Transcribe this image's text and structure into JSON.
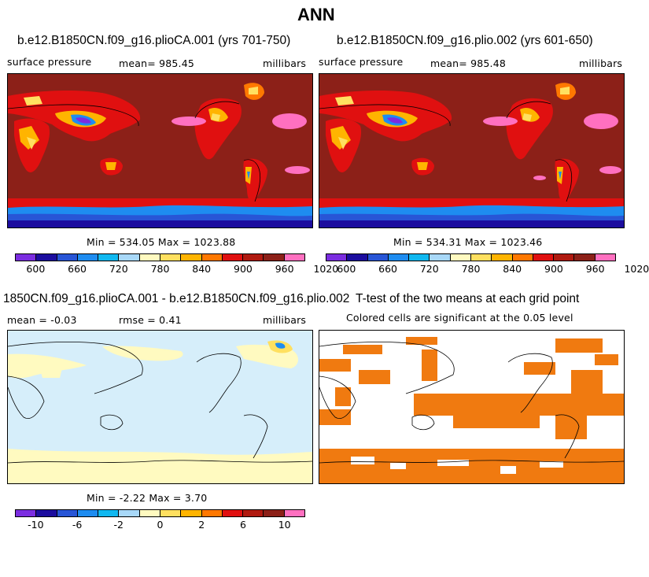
{
  "page": {
    "title": "ANN"
  },
  "colorbar_colors": [
    "#7b2de0",
    "#1c0d9e",
    "#2855d6",
    "#1e8cf0",
    "#10b8f0",
    "#a8d8f8",
    "#fffac0",
    "#ffe060",
    "#ffb400",
    "#ff7800",
    "#e01010",
    "#b01a10",
    "#8c2018",
    "#ff70c0"
  ],
  "chart_data": [
    {
      "type": "heatmap",
      "id": "panel1",
      "title": "b.e12.B1850CN.f09_g16.plioCA.001 (yrs 701-750)",
      "variable": "surface pressure",
      "mean_label": "mean=  985.45",
      "units": "millibars",
      "min_max_label": "Min = 534.05 Max = 1023.88",
      "min": 534.05,
      "max": 1023.88,
      "mean": 985.45,
      "colorbar_ticks": [
        "600",
        "660",
        "720",
        "780",
        "840",
        "900",
        "960",
        "1020"
      ]
    },
    {
      "type": "heatmap",
      "id": "panel2",
      "title": "b.e12.B1850CN.f09_g16.plio.002 (yrs 601-650)",
      "variable": "surface pressure",
      "mean_label": "mean=  985.48",
      "units": "millibars",
      "min_max_label": "Min = 534.31 Max = 1023.46",
      "min": 534.31,
      "max": 1023.46,
      "mean": 985.48,
      "colorbar_ticks": [
        "600",
        "660",
        "720",
        "780",
        "840",
        "900",
        "960",
        "1020"
      ]
    },
    {
      "type": "heatmap",
      "id": "panel3",
      "title": "1850CN.f09_g16.plioCA.001 - b.e12.B1850CN.f09_g16.plio.002",
      "mean_label": "mean =   -0.03",
      "rmse_label": "rmse =    0.41",
      "units": "millibars",
      "min_max_label": "Min =  -2.22 Max =    3.70",
      "min": -2.22,
      "max": 3.7,
      "mean": -0.03,
      "rmse": 0.41,
      "colorbar_ticks": [
        "-10",
        "-6",
        "-2",
        "0",
        "2",
        "6",
        "10"
      ]
    },
    {
      "type": "heatmap",
      "id": "panel4",
      "title": "T-test of the two means at each grid point",
      "subtitle": "Colored cells are significant at the 0.05 level",
      "significance_level": 0.05,
      "significant_color": "#f07a10"
    }
  ]
}
